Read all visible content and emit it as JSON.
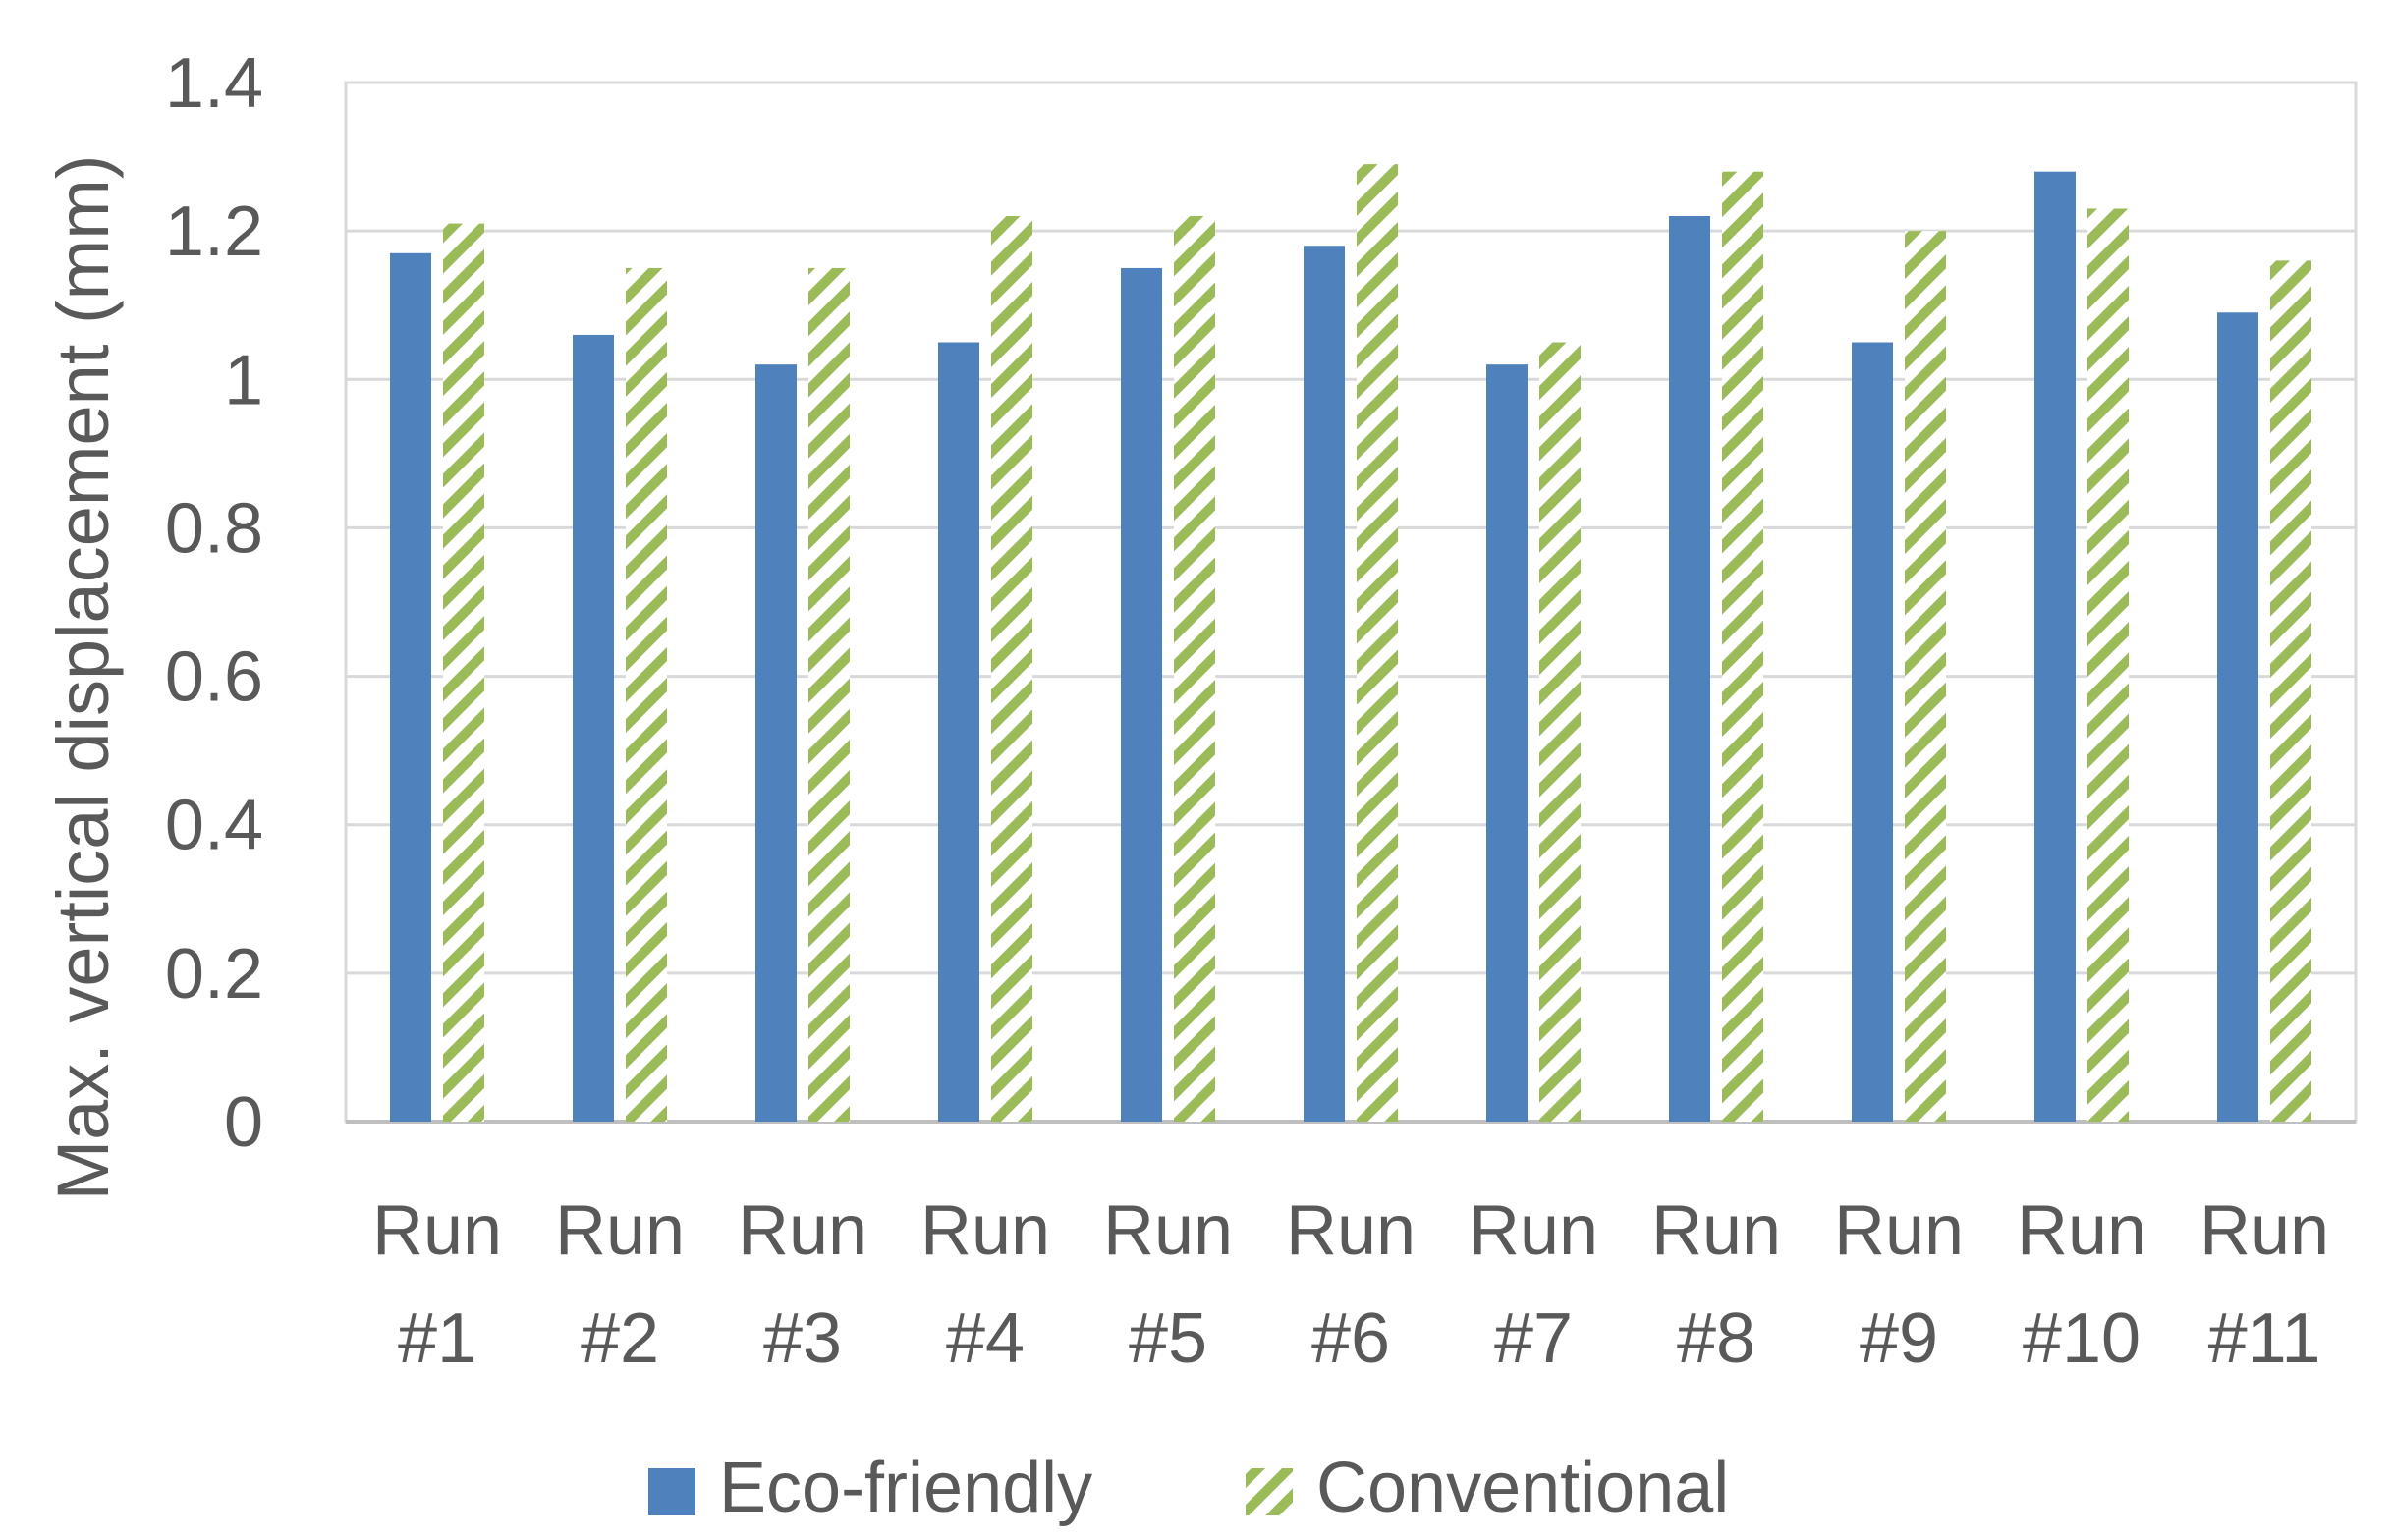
{
  "chart_data": {
    "type": "bar",
    "title": "",
    "xlabel": "",
    "ylabel": "Max. vertical displacement (mm)",
    "ylim": [
      0,
      1.4
    ],
    "yticks": [
      "0",
      "0.2",
      "0.4",
      "0.6",
      "0.8",
      "1",
      "1.2",
      "1.4"
    ],
    "grid": true,
    "legend_position": "bottom",
    "categories": [
      [
        "Run",
        "#1"
      ],
      [
        "Run",
        "#2"
      ],
      [
        "Run",
        "#3"
      ],
      [
        "Run",
        "#4"
      ],
      [
        "Run",
        "#5"
      ],
      [
        "Run",
        "#6"
      ],
      [
        "Run",
        "#7"
      ],
      [
        "Run",
        "#8"
      ],
      [
        "Run",
        "#9"
      ],
      [
        "Run",
        "#10"
      ],
      [
        "Run",
        "#11"
      ]
    ],
    "series": [
      {
        "name": "Eco-friendly",
        "color": "#4f81bd",
        "pattern": "solid",
        "values": [
          1.17,
          1.06,
          1.02,
          1.05,
          1.15,
          1.18,
          1.02,
          1.22,
          1.05,
          1.28,
          1.09
        ]
      },
      {
        "name": "Conventional",
        "color": "#9bbb59",
        "pattern": "diagonal-hatch",
        "values": [
          1.21,
          1.15,
          1.15,
          1.22,
          1.22,
          1.29,
          1.05,
          1.28,
          1.2,
          1.23,
          1.16
        ]
      }
    ]
  }
}
